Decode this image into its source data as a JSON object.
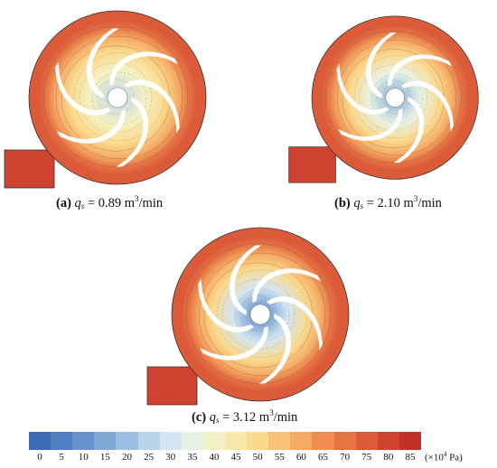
{
  "panels": [
    {
      "label": "(a)",
      "q_symbol": "q",
      "q_sub": "s",
      "value": "= 0.89 m",
      "unit_sup": "3",
      "unit_tail": "/min"
    },
    {
      "label": "(b)",
      "q_symbol": "q",
      "q_sub": "s",
      "value": "= 2.10 m",
      "unit_sup": "3",
      "unit_tail": "/min"
    },
    {
      "label": "(c)",
      "q_symbol": "q",
      "q_sub": "s",
      "value": "= 3.12 m",
      "unit_sup": "3",
      "unit_tail": "/min"
    }
  ],
  "colorbar": {
    "ticks": [
      "0",
      "5",
      "10",
      "15",
      "20",
      "25",
      "30",
      "35",
      "40",
      "45",
      "50",
      "55",
      "60",
      "65",
      "70",
      "75",
      "80",
      "85"
    ],
    "colors": [
      "#3b6bb5",
      "#4f7fc1",
      "#6792cc",
      "#80a8d6",
      "#9cbfe1",
      "#b8d4eb",
      "#d3e6f2",
      "#e8f2e4",
      "#f4f2c4",
      "#f9e9a8",
      "#fbd98c",
      "#f9c277",
      "#f5a963",
      "#ef8e50",
      "#e67343",
      "#db5a38",
      "#cf4230",
      "#c2302a"
    ],
    "unit_prefix": "(×10",
    "unit_sup": "4",
    "unit_suffix": " Pa)"
  }
}
